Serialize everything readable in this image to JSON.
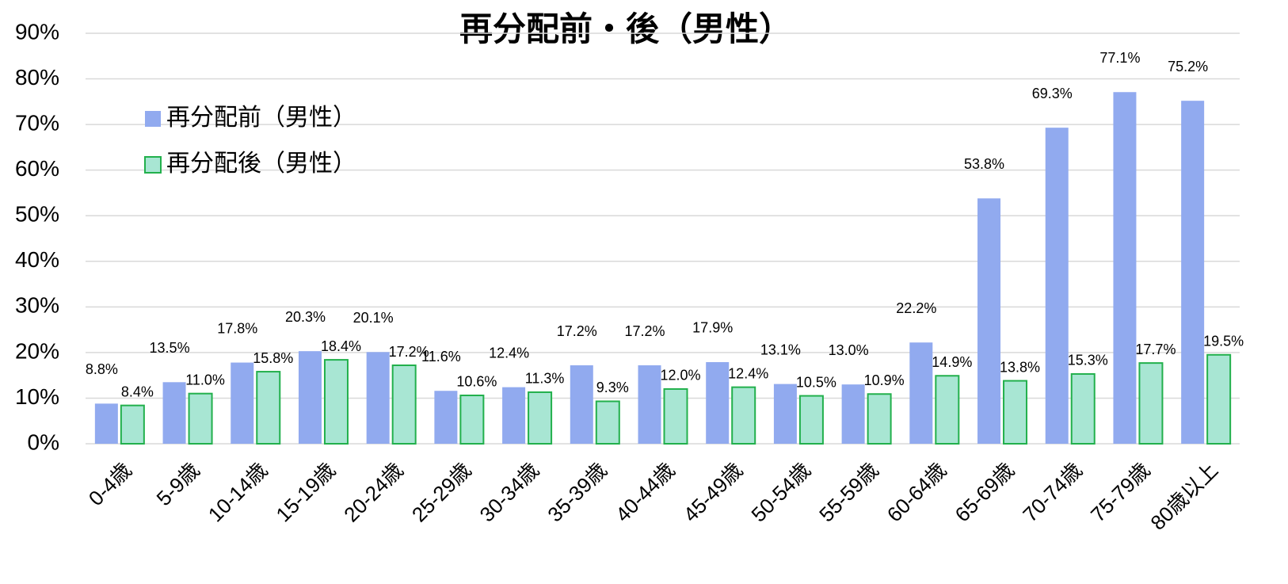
{
  "chart_data": {
    "type": "bar",
    "title": "再分配前・後（男性）",
    "categories": [
      "0-4歳",
      "5-9歳",
      "10-14歳",
      "15-19歳",
      "20-24歳",
      "25-29歳",
      "30-34歳",
      "35-39歳",
      "40-44歳",
      "45-49歳",
      "50-54歳",
      "55-59歳",
      "60-64歳",
      "65-69歳",
      "70-74歳",
      "75-79歳",
      "80歳以上"
    ],
    "series": [
      {
        "name": "再分配前（男性）",
        "color": "#91aaef",
        "values": [
          8.8,
          13.5,
          17.8,
          20.3,
          20.1,
          11.6,
          12.4,
          17.2,
          17.2,
          17.9,
          13.1,
          13.0,
          22.2,
          53.8,
          69.3,
          77.1,
          75.2
        ],
        "value_labels": [
          "8.8%",
          "13.5%",
          "17.8%",
          "20.3%",
          "20.1%",
          "11.6%",
          "12.4%",
          "17.2%",
          "17.2%",
          "17.9%",
          "13.1%",
          "13.0%",
          "22.2%",
          "53.8%",
          "69.3%",
          "77.1%",
          "75.2%"
        ]
      },
      {
        "name": "再分配後（男性）",
        "color": "#a8e6d3",
        "edge_color": "#22b04c",
        "values": [
          8.4,
          11.0,
          15.8,
          18.4,
          17.2,
          10.6,
          11.3,
          9.3,
          12.0,
          12.4,
          10.5,
          10.9,
          14.9,
          13.8,
          15.3,
          17.7,
          19.5
        ],
        "value_labels": [
          "8.4%",
          "11.0%",
          "15.8%",
          "18.4%",
          "17.2%",
          "10.6%",
          "11.3%",
          "9.3%",
          "12.0%",
          "12.4%",
          "10.5%",
          "10.9%",
          "14.9%",
          "13.8%",
          "15.3%",
          "17.7%",
          "19.5%"
        ]
      }
    ],
    "ylim": [
      0,
      90
    ],
    "yticks": [
      {
        "value": 0,
        "label": "0%"
      },
      {
        "value": 10,
        "label": "10%"
      },
      {
        "value": 20,
        "label": "20%"
      },
      {
        "value": 30,
        "label": "30%"
      },
      {
        "value": 40,
        "label": "40%"
      },
      {
        "value": 50,
        "label": "50%"
      },
      {
        "value": 60,
        "label": "60%"
      },
      {
        "value": 70,
        "label": "70%"
      },
      {
        "value": 80,
        "label": "80%"
      },
      {
        "value": 90,
        "label": "90%"
      }
    ],
    "grid": true,
    "legend": "upper left"
  }
}
